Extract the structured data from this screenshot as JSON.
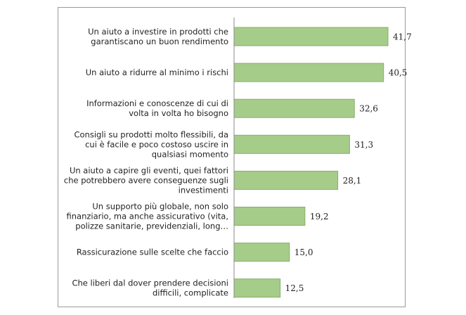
{
  "chart_data": {
    "type": "bar",
    "orientation": "horizontal",
    "categories": [
      [
        "Un aiuto a investire in prodotti che",
        "garantiscano un buon rendimento"
      ],
      [
        "Un aiuto a ridurre al minimo i rischi"
      ],
      [
        "Informazioni e conoscenze di cui di",
        "volta in volta ho bisogno"
      ],
      [
        "Consigli su prodotti molto flessibili, da",
        "cui è facile e poco costoso uscire in",
        "qualsiasi momento"
      ],
      [
        "Un aiuto a capire gli eventi, quei fattori",
        "che potrebbero avere conseguenze sugli",
        "investimenti"
      ],
      [
        "Un supporto più globale, non solo",
        "finanziario, ma anche assicurativo (vita,",
        "polizze sanitarie, previdenziali, long…"
      ],
      [
        "Rassicurazione sulle scelte che faccio"
      ],
      [
        "Che liberi dal dover prendere decisioni",
        "difficili, complicate"
      ]
    ],
    "values": [
      41.7,
      40.5,
      32.6,
      31.3,
      28.1,
      19.2,
      15.0,
      12.5
    ],
    "value_labels": [
      "41,7",
      "40,5",
      "32,6",
      "31,3",
      "28,1",
      "19,2",
      "15,0",
      "12,5"
    ],
    "xlim": [
      0,
      48
    ],
    "bar_color": "#a6cc8a",
    "bar_border_color": "#86ae6a",
    "axis_color": "#8a8a8a",
    "grid": false,
    "legend": "none"
  }
}
